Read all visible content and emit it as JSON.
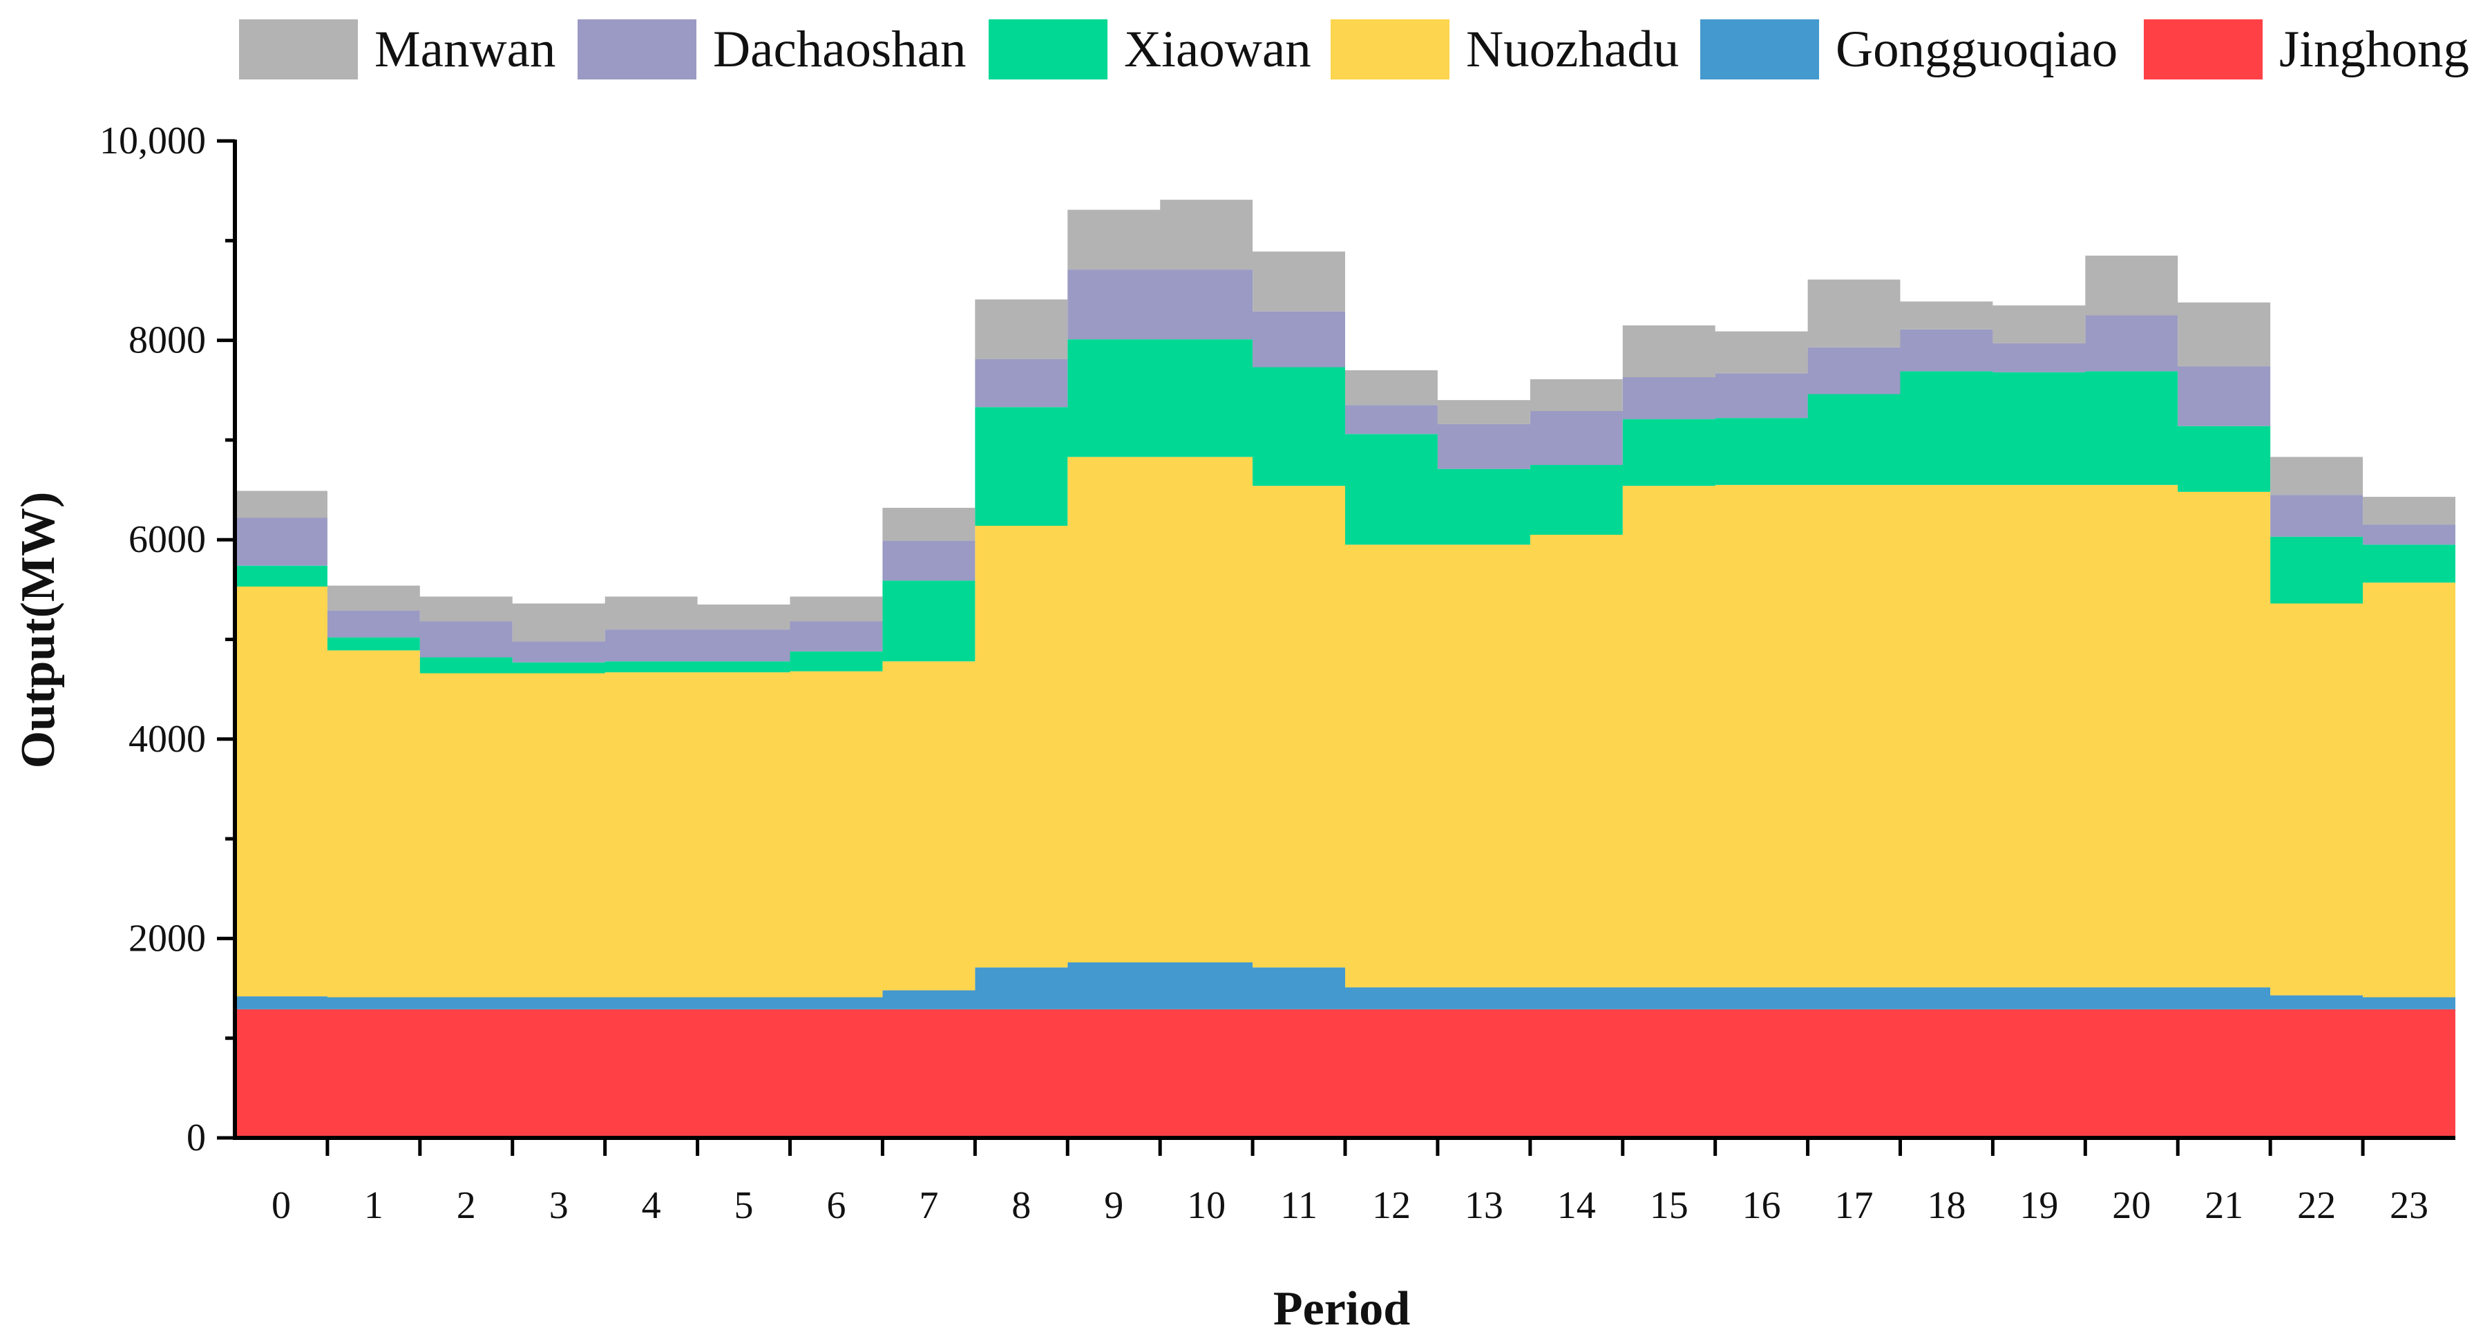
{
  "chart_data": {
    "type": "area",
    "step": true,
    "stacked": true,
    "title": "",
    "xlabel": "Period",
    "ylabel": "Output(MW)",
    "ylim": [
      0,
      10000
    ],
    "y_ticks": [
      0,
      2000,
      4000,
      6000,
      8000,
      10000
    ],
    "y_tick_labels": [
      "0",
      "2000",
      "4000",
      "6000",
      "8000",
      "10,000"
    ],
    "x_ticks": [
      "0",
      "1",
      "2",
      "3",
      "4",
      "5",
      "6",
      "7",
      "8",
      "9",
      "10",
      "11",
      "12",
      "13",
      "14",
      "15",
      "16",
      "17",
      "18",
      "19",
      "20",
      "21",
      "22",
      "23"
    ],
    "legend_position": "top",
    "grid": false,
    "series": [
      {
        "name": "Jinghong",
        "color": "#FF4146",
        "values": [
          1290,
          1290,
          1290,
          1290,
          1290,
          1290,
          1290,
          1290,
          1290,
          1290,
          1290,
          1290,
          1290,
          1290,
          1290,
          1290,
          1290,
          1290,
          1290,
          1290,
          1290,
          1290,
          1290,
          1290
        ]
      },
      {
        "name": "Gongguoqiao",
        "color": "#4499CE",
        "values": [
          130,
          120,
          120,
          120,
          120,
          120,
          120,
          190,
          420,
          470,
          470,
          420,
          220,
          220,
          220,
          220,
          220,
          220,
          220,
          220,
          220,
          220,
          140,
          120
        ]
      },
      {
        "name": "Nuozhadu",
        "color": "#FDD54E",
        "values": [
          4110,
          3480,
          3250,
          3250,
          3260,
          3260,
          3270,
          3300,
          4430,
          5070,
          5070,
          4830,
          4440,
          4440,
          4540,
          5030,
          5040,
          5040,
          5040,
          5040,
          5040,
          4970,
          3930,
          4160
        ]
      },
      {
        "name": "Xiaowan",
        "color": "#00D894",
        "values": [
          210,
          130,
          160,
          110,
          110,
          110,
          200,
          810,
          1190,
          1180,
          1180,
          1190,
          1110,
          760,
          700,
          670,
          670,
          910,
          1140,
          1130,
          1140,
          660,
          670,
          380
        ]
      },
      {
        "name": "Dachaoshan",
        "color": "#9A9AC4",
        "values": [
          480,
          270,
          360,
          210,
          320,
          320,
          300,
          400,
          480,
          700,
          700,
          560,
          290,
          450,
          540,
          420,
          450,
          470,
          420,
          290,
          560,
          600,
          420,
          200
        ]
      },
      {
        "name": "Manwan",
        "color": "#B3B3B3",
        "values": [
          270,
          250,
          250,
          380,
          330,
          250,
          250,
          330,
          600,
          600,
          700,
          600,
          350,
          240,
          320,
          520,
          420,
          680,
          280,
          380,
          600,
          640,
          380,
          280
        ]
      }
    ]
  },
  "legend_order": [
    "Manwan",
    "Dachaoshan",
    "Xiaowan",
    "Nuozhadu",
    "Gongguoqiao",
    "Jinghong"
  ]
}
